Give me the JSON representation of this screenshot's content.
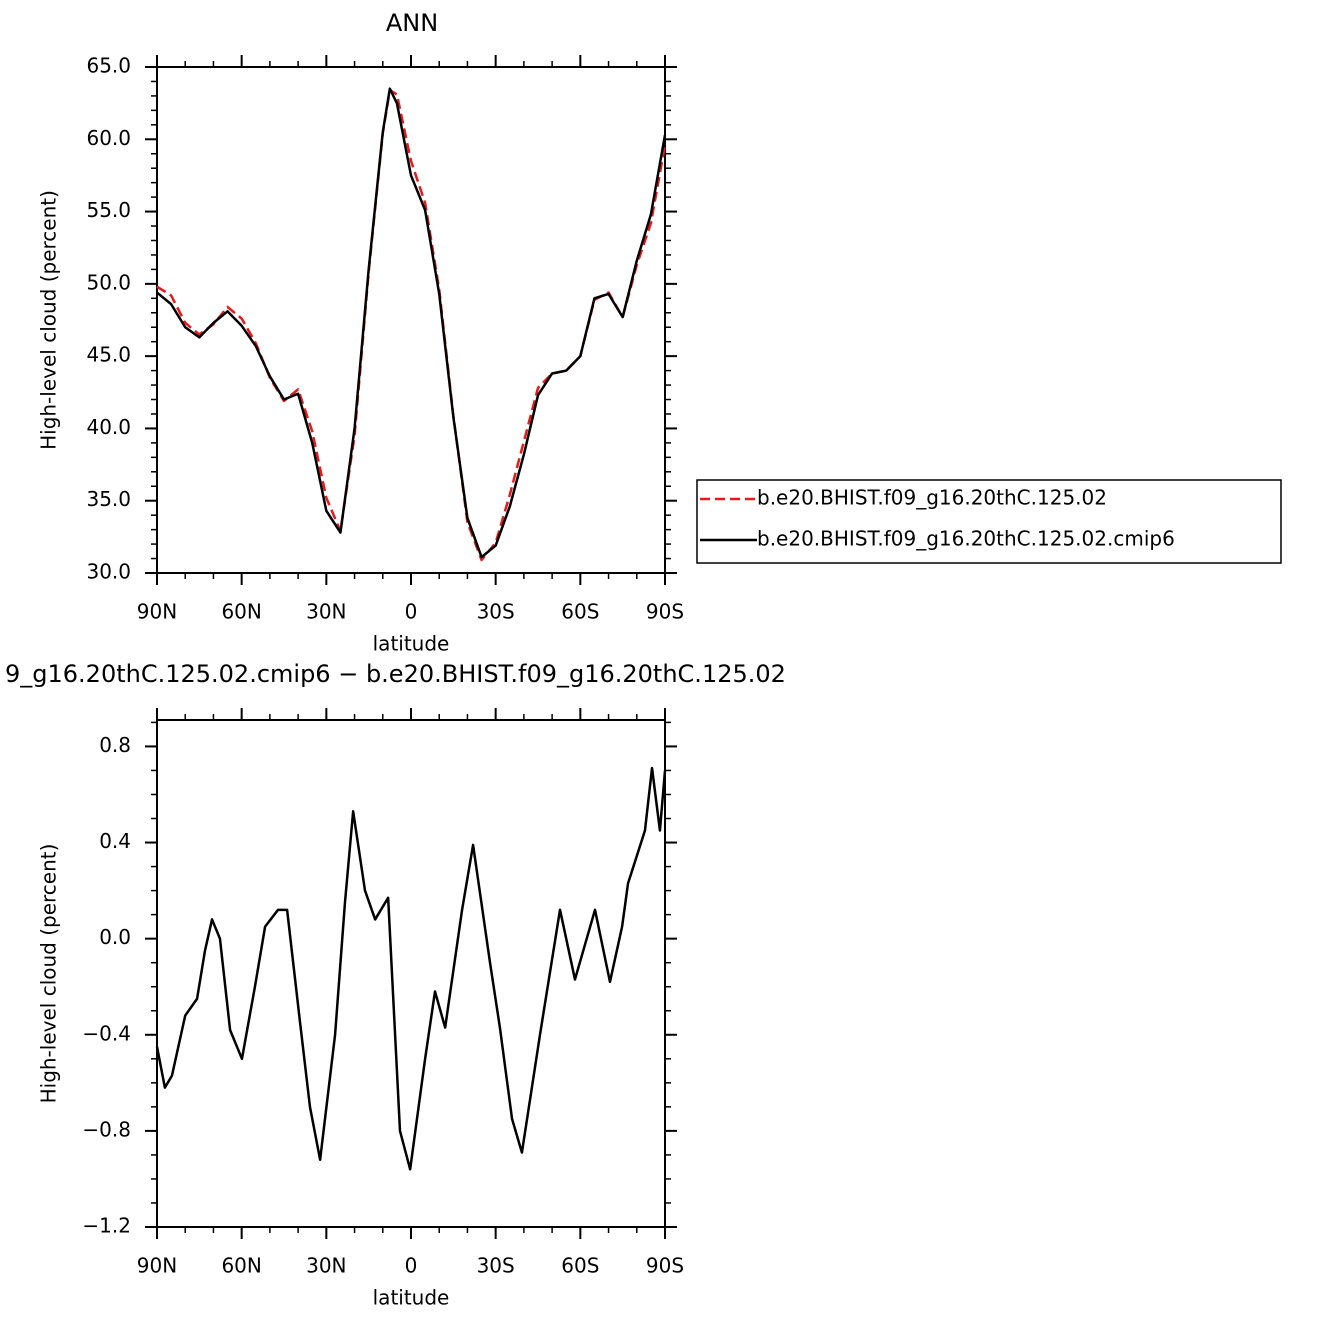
{
  "chart_data": [
    {
      "type": "line",
      "title": "ANN",
      "xlabel": "latitude",
      "ylabel": "High-level cloud (percent)",
      "x": [
        90,
        85,
        80,
        75,
        70,
        65,
        60,
        55,
        50,
        45,
        40,
        35,
        30,
        25,
        20,
        15,
        10,
        7.5,
        5,
        0,
        -5,
        -10,
        -15,
        -20,
        -25,
        -30,
        -35,
        -40,
        -45,
        -50,
        -55,
        -60,
        -65,
        -70,
        -75,
        -80,
        -85,
        -90
      ],
      "series": [
        {
          "name": "b.e20.BHIST.f09_g16.20thC.125.02",
          "color": "#e41a1c",
          "dash": "dashed",
          "values": [
            49.8,
            49.2,
            47.3,
            46.5,
            47.2,
            48.4,
            47.6,
            45.9,
            43.5,
            41.9,
            42.7,
            39.8,
            35.2,
            32.9,
            39.5,
            50.8,
            60.4,
            63.4,
            63.1,
            58.5,
            55.6,
            49.6,
            40.9,
            33.5,
            30.9,
            32.1,
            35.4,
            39.1,
            42.8,
            43.8,
            44.0,
            45.0,
            48.9,
            49.4,
            47.7,
            51.3,
            54.2,
            59.6
          ]
        },
        {
          "name": "b.e20.BHIST.f09_g16.20thC.125.02.cmip6",
          "color": "#000000",
          "dash": "solid",
          "values": [
            49.4,
            48.6,
            47.0,
            46.3,
            47.3,
            48.1,
            47.1,
            45.7,
            43.6,
            42.0,
            42.4,
            39.0,
            34.3,
            32.8,
            40.0,
            51.0,
            60.5,
            63.5,
            62.5,
            57.5,
            55.1,
            49.3,
            40.8,
            33.8,
            31.1,
            31.9,
            34.6,
            38.2,
            42.3,
            43.8,
            44.0,
            45.0,
            49.0,
            49.3,
            47.7,
            51.6,
            54.8,
            60.3
          ]
        }
      ],
      "xlim": [
        90,
        -90
      ],
      "xticks": [
        {
          "value": 90,
          "label": "90N"
        },
        {
          "value": 60,
          "label": "60N"
        },
        {
          "value": 30,
          "label": "30N"
        },
        0,
        {
          "value": -30,
          "label": "30S"
        },
        {
          "value": -60,
          "label": "60S"
        },
        {
          "value": -90,
          "label": "90S"
        }
      ],
      "ylim": [
        30,
        65
      ],
      "yticks": [
        {
          "value": 30,
          "label": "30.0"
        },
        {
          "value": 35,
          "label": "35.0"
        },
        {
          "value": 40,
          "label": "40.0"
        },
        {
          "value": 45,
          "label": "45.0"
        },
        {
          "value": 50,
          "label": "50.0"
        },
        {
          "value": 55,
          "label": "55.0"
        },
        {
          "value": 60,
          "label": "60.0"
        },
        {
          "value": 65,
          "label": "65.0"
        }
      ]
    },
    {
      "type": "line",
      "title": "9_g16.20thC.125.02.cmip6 − b.e20.BHIST.f09_g16.20thC.125.02",
      "xlabel": "latitude",
      "ylabel": "High-level cloud (percent)",
      "x": [
        90,
        87.2,
        84.7,
        80,
        75.8,
        73,
        70.5,
        67.7,
        64.1,
        59.9,
        55.3,
        51.7,
        47.1,
        43.9,
        39.3,
        35.8,
        32.2,
        26.9,
        23.4,
        20.5,
        16.3,
        12.7,
        8.1,
        3.9,
        0.3,
        -5,
        -8.5,
        -12.1,
        -18.1,
        -22,
        -28,
        -31.5,
        -35.8,
        -39.3,
        -45.7,
        -52.8,
        -58.1,
        -65.2,
        -70.5,
        -74.8,
        -76.9,
        -82.9,
        -85.4,
        -88.2,
        -90
      ],
      "series": [
        {
          "color": "#000000",
          "dash": "solid",
          "values": [
            -0.45,
            -0.62,
            -0.57,
            -0.32,
            -0.25,
            -0.05,
            0.08,
            0.0,
            -0.38,
            -0.5,
            -0.2,
            0.05,
            0.12,
            0.12,
            -0.35,
            -0.7,
            -0.92,
            -0.4,
            0.15,
            0.53,
            0.2,
            0.08,
            0.17,
            -0.8,
            -0.96,
            -0.5,
            -0.22,
            -0.37,
            0.12,
            0.39,
            -0.1,
            -0.37,
            -0.75,
            -0.89,
            -0.4,
            0.12,
            -0.17,
            0.12,
            -0.18,
            0.05,
            0.23,
            0.45,
            0.71,
            0.45,
            0.7
          ]
        }
      ],
      "xlim": [
        90,
        -90
      ],
      "xticks": [
        {
          "value": 90,
          "label": "90N"
        },
        {
          "value": 60,
          "label": "60N"
        },
        {
          "value": 30,
          "label": "30N"
        },
        0,
        {
          "value": -30,
          "label": "30S"
        },
        {
          "value": -60,
          "label": "60S"
        },
        {
          "value": -90,
          "label": "90S"
        }
      ],
      "ylim": [
        -1.2,
        0.91
      ],
      "yticks": [
        {
          "value": -1.2,
          "label": "−1.2"
        },
        {
          "value": -0.8,
          "label": "−0.8"
        },
        {
          "value": -0.4,
          "label": "−0.4"
        },
        {
          "value": 0,
          "label": "0.0"
        },
        0.4,
        0.8
      ]
    }
  ]
}
